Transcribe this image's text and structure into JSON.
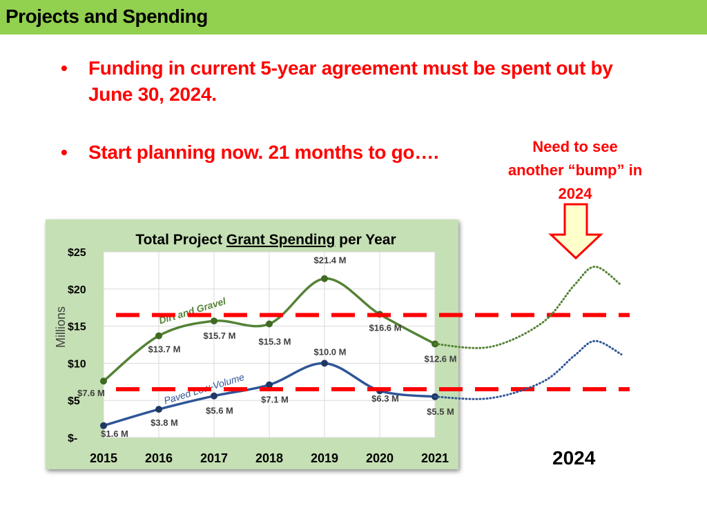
{
  "slide": {
    "title": "Projects and Spending",
    "bullets": [
      "Funding in current 5-year agreement must be spent out by June 30, 2024.",
      "Start planning now.  21 months to go…."
    ],
    "bullet_symbol": "•",
    "callout": "Need to see another “bump” in 2024",
    "projection_year": "2024",
    "colors": {
      "title_bar": "#92d050",
      "emphasis": "#ff0000",
      "dirt_gravel": "#548235",
      "paved": "#2f5597",
      "arrow_fill": "#ffffcc",
      "arrow_stroke": "#ff0000"
    }
  },
  "chart_data": {
    "type": "line",
    "title_parts": [
      "Total Project ",
      "Grant Spending",
      " per Year"
    ],
    "ylabel": "Millions",
    "ylim": [
      0,
      25
    ],
    "yticks": [
      0,
      5,
      10,
      15,
      20,
      25
    ],
    "ytick_labels": [
      "$-",
      "$5",
      "$10",
      "$15",
      "$20",
      "$25"
    ],
    "categories": [
      "2015",
      "2016",
      "2017",
      "2018",
      "2019",
      "2020",
      "2021"
    ],
    "grid": true,
    "series": [
      {
        "name": "Dirt and Gravel",
        "color": "#548235",
        "values": [
          7.6,
          13.7,
          15.7,
          15.3,
          21.4,
          16.6,
          12.6
        ],
        "labels": [
          "$7.6 M",
          "$13.7 M",
          "$15.7 M",
          "$15.3 M",
          "$21.4 M",
          "$16.6 M",
          "$12.6 M"
        ]
      },
      {
        "name": "Paved Low-Volume",
        "color": "#2f5597",
        "values": [
          1.6,
          3.8,
          5.6,
          7.1,
          10.0,
          6.3,
          5.5
        ],
        "labels": [
          "$1.6 M",
          "$3.8 M",
          "$5.6 M",
          "$7.1 M",
          "$10.0 M",
          "$6.3 M",
          "$5.5 M"
        ]
      }
    ],
    "reference_lines": [
      16.5,
      6.5
    ],
    "projection": [
      {
        "series": "Dirt and Gravel",
        "x": [
          2021,
          2022,
          2023,
          2023.6,
          2024,
          2024.5
        ],
        "values": [
          12.6,
          12.2,
          15.5,
          20.5,
          23.0,
          20.5
        ]
      },
      {
        "series": "Paved Low-Volume",
        "x": [
          2021,
          2022,
          2023,
          2023.6,
          2024,
          2024.5
        ],
        "values": [
          5.5,
          5.3,
          7.5,
          11.0,
          13.0,
          11.2
        ]
      }
    ]
  }
}
